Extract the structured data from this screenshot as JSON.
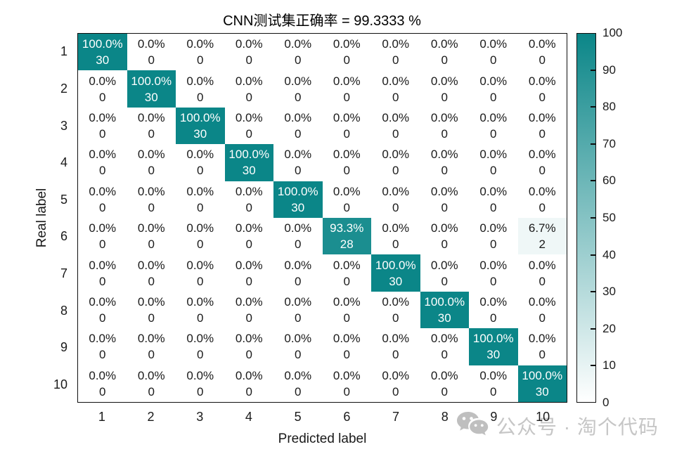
{
  "watermark": {
    "text": "公众号 · 淘个代码",
    "icon": "wechat-icon",
    "color": "#c6c6c6"
  },
  "chart_data": {
    "type": "heatmap",
    "title": "CNN测试集正确率 = 99.3333 %",
    "xlabel": "Predicted label",
    "ylabel": "Real label",
    "x_categories": [
      "1",
      "2",
      "3",
      "4",
      "5",
      "6",
      "7",
      "8",
      "9",
      "10"
    ],
    "y_categories": [
      "1",
      "2",
      "3",
      "4",
      "5",
      "6",
      "7",
      "8",
      "9",
      "10"
    ],
    "percent_matrix": [
      [
        100,
        0,
        0,
        0,
        0,
        0,
        0,
        0,
        0,
        0
      ],
      [
        0,
        100,
        0,
        0,
        0,
        0,
        0,
        0,
        0,
        0
      ],
      [
        0,
        0,
        100,
        0,
        0,
        0,
        0,
        0,
        0,
        0
      ],
      [
        0,
        0,
        0,
        100,
        0,
        0,
        0,
        0,
        0,
        0
      ],
      [
        0,
        0,
        0,
        0,
        100,
        0,
        0,
        0,
        0,
        0
      ],
      [
        0,
        0,
        0,
        0,
        0,
        93.3,
        0,
        0,
        0,
        6.7
      ],
      [
        0,
        0,
        0,
        0,
        0,
        0,
        100,
        0,
        0,
        0
      ],
      [
        0,
        0,
        0,
        0,
        0,
        0,
        0,
        100,
        0,
        0
      ],
      [
        0,
        0,
        0,
        0,
        0,
        0,
        0,
        0,
        100,
        0
      ],
      [
        0,
        0,
        0,
        0,
        0,
        0,
        0,
        0,
        0,
        100
      ]
    ],
    "count_matrix": [
      [
        30,
        0,
        0,
        0,
        0,
        0,
        0,
        0,
        0,
        0
      ],
      [
        0,
        30,
        0,
        0,
        0,
        0,
        0,
        0,
        0,
        0
      ],
      [
        0,
        0,
        30,
        0,
        0,
        0,
        0,
        0,
        0,
        0
      ],
      [
        0,
        0,
        0,
        30,
        0,
        0,
        0,
        0,
        0,
        0
      ],
      [
        0,
        0,
        0,
        0,
        30,
        0,
        0,
        0,
        0,
        0
      ],
      [
        0,
        0,
        0,
        0,
        0,
        28,
        0,
        0,
        0,
        2
      ],
      [
        0,
        0,
        0,
        0,
        0,
        0,
        30,
        0,
        0,
        0
      ],
      [
        0,
        0,
        0,
        0,
        0,
        0,
        0,
        30,
        0,
        0
      ],
      [
        0,
        0,
        0,
        0,
        0,
        0,
        0,
        0,
        30,
        0
      ],
      [
        0,
        0,
        0,
        0,
        0,
        0,
        0,
        0,
        0,
        30
      ]
    ],
    "colorbar": {
      "min": 0,
      "max": 100,
      "ticks": [
        0,
        10,
        20,
        30,
        40,
        50,
        60,
        70,
        80,
        90,
        100
      ],
      "color_min": "#ffffff",
      "color_max": "#0b8688"
    },
    "grid": false,
    "legend_position": "right-colorbar",
    "text_color_dark": "#1a1a1a",
    "text_color_light": "#ffffff"
  }
}
